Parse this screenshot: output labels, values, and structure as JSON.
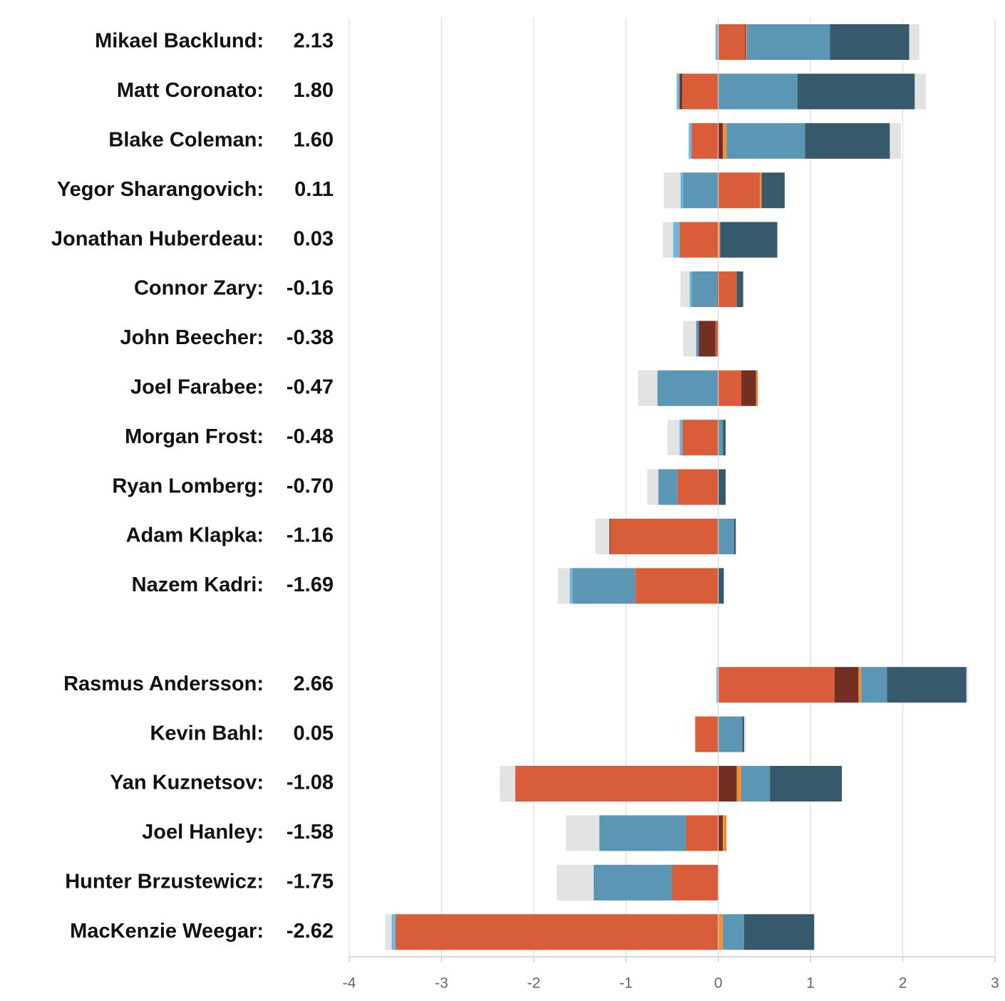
{
  "chart_data": {
    "type": "diverging-stacked-bar",
    "categories": [
      "Mikael Backlund:",
      "Matt Coronato:",
      "Blake Coleman:",
      "Yegor Sharangovich:",
      "Jonathan Huberdeau:",
      "Connor Zary:",
      "John Beecher:",
      "Joel Farabee:",
      "Morgan Frost:",
      "Ryan Lomberg:",
      "Adam Klapka:",
      "Nazem Kadri:",
      null,
      "Rasmus Andersson:",
      "Kevin Bahl:",
      "Yan Kuznetsov:",
      "Joel Hanley:",
      "Hunter Brzustewicz:",
      "MacKenzie Weegar:"
    ],
    "values": [
      2.13,
      1.8,
      1.6,
      0.11,
      0.03,
      -0.16,
      -0.38,
      -0.47,
      -0.48,
      -0.7,
      -1.16,
      -1.69,
      null,
      2.66,
      0.05,
      -1.08,
      -1.58,
      -1.75,
      -2.62
    ],
    "value_labels": [
      "2.13",
      "1.80",
      "1.60",
      "0.11",
      "0.03",
      "-0.16",
      "-0.38",
      "-0.47",
      "-0.48",
      "-0.70",
      "-1.16",
      "-1.69",
      null,
      "2.66",
      "0.05",
      "-1.08",
      "-1.58",
      "-1.75",
      "-2.62"
    ],
    "series": [
      {
        "color": "#d95d39",
        "values": [
          0.29,
          -0.39,
          -0.29,
          0.45,
          -0.42,
          0.2,
          -0.03,
          0.25,
          -0.39,
          -0.44,
          -1.17,
          -0.9,
          null,
          1.26,
          -0.25,
          -2.2,
          -0.35,
          -0.5,
          -3.5
        ]
      },
      {
        "color": "#722f22",
        "values": [
          0.01,
          -0.03,
          0.05,
          null,
          null,
          -0.01,
          -0.18,
          0.16,
          null,
          null,
          -0.01,
          null,
          null,
          0.26,
          null,
          0.2,
          0.05,
          null,
          null
        ]
      },
      {
        "color": "#ef8f3b",
        "values": [
          0.01,
          null,
          0.04,
          0.02,
          0.02,
          null,
          null,
          0.02,
          null,
          null,
          null,
          null,
          null,
          0.03,
          null,
          0.05,
          0.04,
          null,
          0.05
        ]
      },
      {
        "color": "#5b96b5",
        "values": [
          0.9,
          0.86,
          0.85,
          -0.38,
          null,
          -0.28,
          -0.03,
          -0.66,
          0.05,
          -0.21,
          0.17,
          -0.68,
          null,
          0.28,
          0.26,
          0.31,
          -0.94,
          -0.85,
          0.23
        ]
      },
      {
        "color": "#6cb6e0",
        "values": [
          -0.03,
          -0.03,
          -0.03,
          -0.03,
          -0.07,
          -0.02,
          null,
          null,
          -0.03,
          null,
          null,
          -0.03,
          null,
          -0.02,
          null,
          null,
          null,
          null,
          -0.04
        ]
      },
      {
        "color": "#365a6c",
        "values": [
          0.86,
          1.27,
          0.92,
          0.25,
          0.62,
          0.07,
          null,
          null,
          0.03,
          0.08,
          0.02,
          0.06,
          null,
          0.86,
          0.02,
          0.78,
          null,
          null,
          0.76
        ]
      },
      {
        "color": "#e3e3e3",
        "values": [
          0.11,
          0.12,
          0.12,
          -0.18,
          -0.11,
          -0.1,
          -0.14,
          -0.21,
          -0.13,
          -0.12,
          -0.15,
          -0.13,
          null,
          0.02,
          0.02,
          -0.17,
          -0.36,
          -0.4,
          -0.07
        ]
      }
    ],
    "xlim": [
      -4,
      3
    ],
    "xticks": [
      -4,
      -3,
      -2,
      -1,
      0,
      1,
      2,
      3
    ],
    "grid": true
  }
}
